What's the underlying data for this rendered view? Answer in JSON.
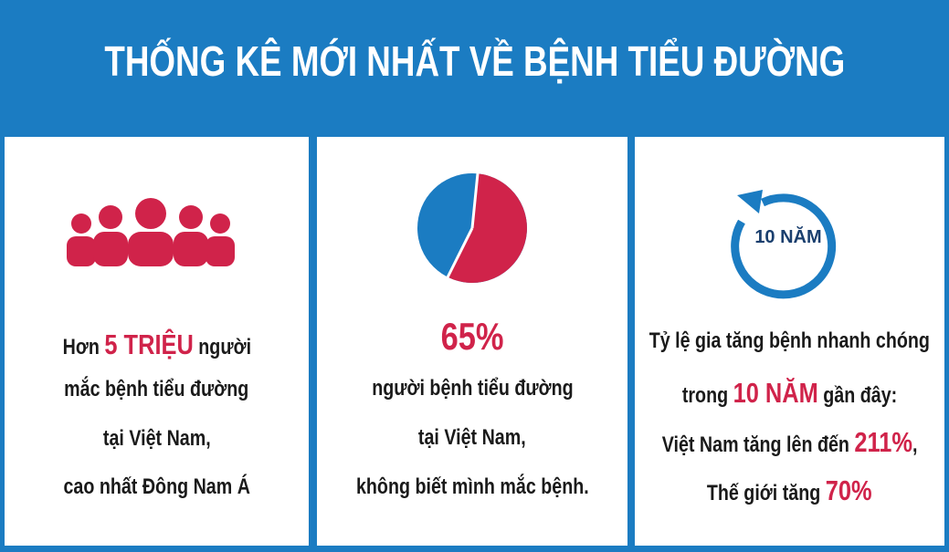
{
  "header": {
    "title": "THỐNG KÊ MỚI NHẤT VỀ BỆNH TIỂU ĐƯỜNG"
  },
  "panels": [
    {
      "lines": [
        [
          {
            "text": "Hơn "
          },
          {
            "text": "5 TRIỆU",
            "highlight": true
          },
          {
            "text": " người"
          }
        ],
        [
          {
            "text": "mắc bệnh tiểu đường"
          }
        ],
        [
          {
            "text": "tại Việt Nam,"
          }
        ],
        [
          {
            "text": "cao nhất Đông Nam Á"
          }
        ]
      ]
    },
    {
      "big": "65%",
      "lines": [
        [
          {
            "text": "người bệnh tiểu đường"
          }
        ],
        [
          {
            "text": "tại Việt Nam,"
          }
        ],
        [
          {
            "text": "không biết mình mắc bệnh."
          }
        ]
      ]
    },
    {
      "icon_label": "10 NĂM",
      "lines": [
        [
          {
            "text": "Tỷ lệ gia tăng bệnh nhanh chóng"
          }
        ],
        [
          {
            "text": "trong "
          },
          {
            "text": "10 NĂM",
            "highlight": true
          },
          {
            "text": " gần đây:"
          }
        ],
        [
          {
            "text": "Việt Nam tăng lên đến "
          },
          {
            "text": "211%",
            "highlight": true
          },
          {
            "text": ","
          }
        ],
        [
          {
            "text": "Thế giới tăng "
          },
          {
            "text": "70%",
            "highlight": true
          }
        ]
      ]
    }
  ]
}
